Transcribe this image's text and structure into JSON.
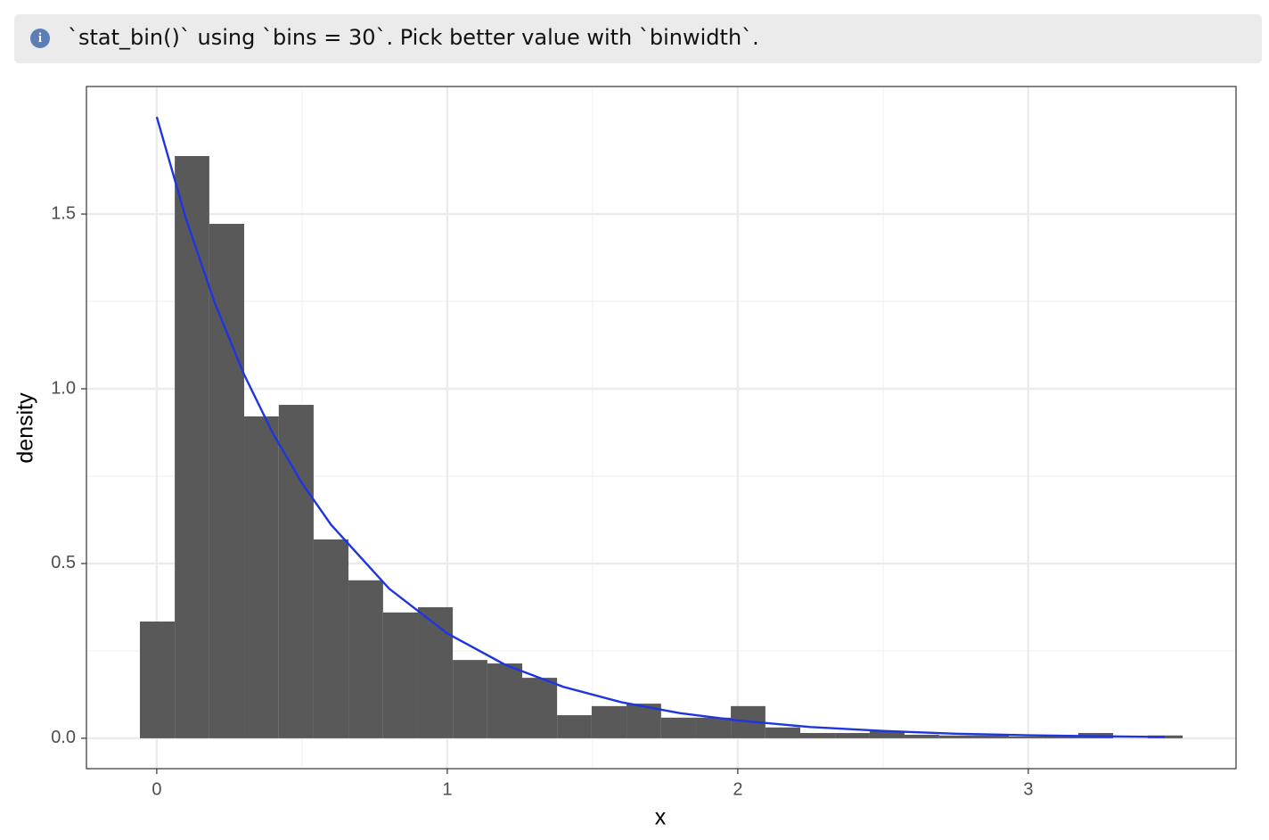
{
  "message": "`stat_bin()` using `bins = 30`. Pick better value with `binwidth`.",
  "chart_data": {
    "type": "histogram",
    "xlabel": "x",
    "ylabel": "density",
    "bins": [
      -0.058,
      0.062,
      0.181,
      0.301,
      0.42,
      0.54,
      0.66,
      0.779,
      0.899,
      1.019,
      1.138,
      1.258,
      1.378,
      1.497,
      1.617,
      1.736,
      1.856,
      1.976,
      2.095,
      2.215,
      2.335,
      2.454,
      2.574,
      2.693,
      2.813,
      2.933,
      3.052,
      3.172,
      3.292,
      3.411,
      3.531
    ],
    "values": [
      0.334,
      1.666,
      1.472,
      0.921,
      0.954,
      0.569,
      0.452,
      0.36,
      0.375,
      0.224,
      0.214,
      0.173,
      0.066,
      0.092,
      0.099,
      0.059,
      0.059,
      0.092,
      0.031,
      0.015,
      0.015,
      0.02,
      0.01,
      0.008,
      0.008,
      0.005,
      0.005,
      0.015,
      0,
      0.008
    ],
    "color": "#595959",
    "line": {
      "type": "line",
      "color": "#1f35e0",
      "x": [
        0,
        0.1,
        0.2,
        0.3,
        0.4,
        0.5,
        0.6,
        0.8,
        1.0,
        1.2,
        1.4,
        1.6,
        1.8,
        2.0,
        2.25,
        2.5,
        2.75,
        3.0,
        3.25,
        3.47
      ],
      "values": [
        1.778,
        1.488,
        1.245,
        1.042,
        0.872,
        0.73,
        0.611,
        0.428,
        0.3,
        0.21,
        0.147,
        0.103,
        0.072,
        0.051,
        0.032,
        0.021,
        0.013,
        0.0085,
        0.0055,
        0.0037
      ]
    },
    "xlim": [
      -0.242,
      3.715
    ],
    "ylim": [
      -0.087,
      1.865
    ],
    "xticks": [
      0,
      1,
      2,
      3
    ],
    "yticks": [
      {
        "value": 0,
        "label": "0.0"
      },
      0.5,
      {
        "value": 1,
        "label": "1.0"
      },
      1.5
    ],
    "grid": true
  }
}
